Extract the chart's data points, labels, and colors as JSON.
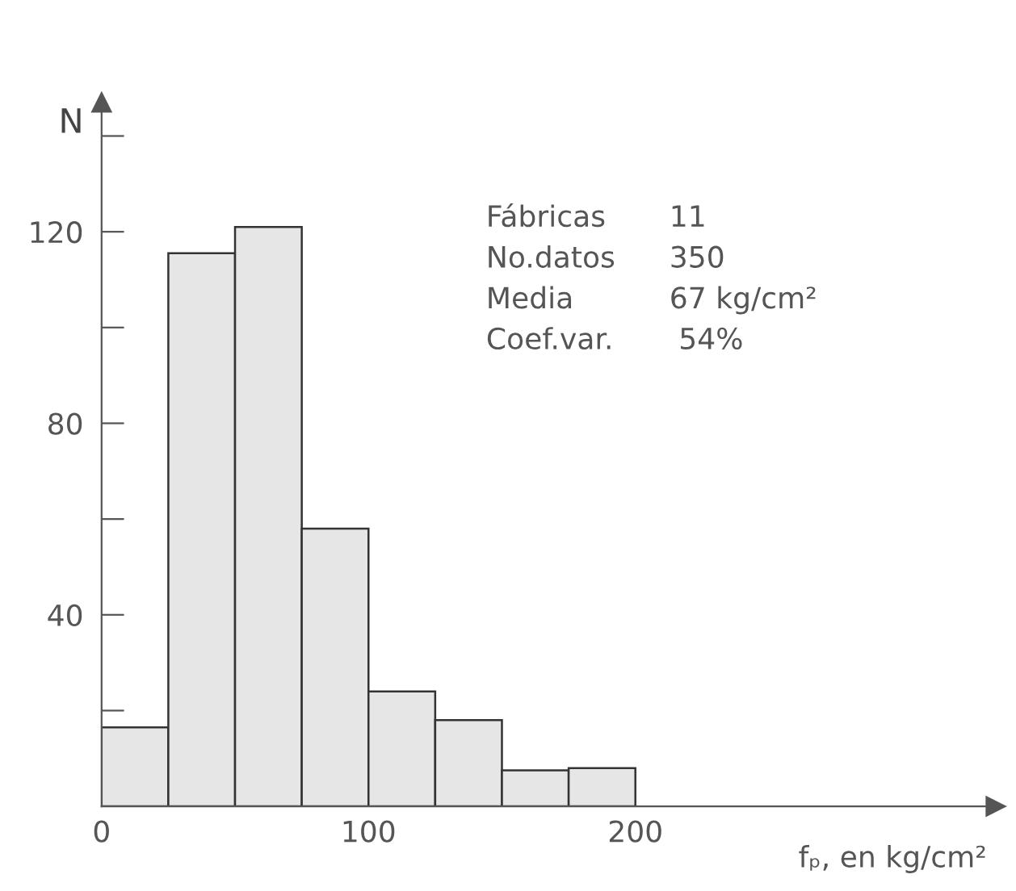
{
  "chart_data": {
    "type": "histogram",
    "ylabel": "N",
    "xlabel": "fₚ, en kg/cm²",
    "bins": [
      0,
      25,
      50,
      75,
      100,
      125,
      150,
      175,
      200
    ],
    "values": [
      16.5,
      115.5,
      121,
      58,
      24,
      18,
      7.5,
      8
    ],
    "color": "#e6e6e6",
    "xlim": [
      0,
      335
    ],
    "ylim": [
      0,
      147
    ],
    "xticks": [
      0,
      100,
      200
    ],
    "yticks": [
      {
        "value": 20,
        "label": null
      },
      40,
      {
        "value": 60,
        "label": null
      },
      80,
      {
        "value": 100,
        "label": null
      },
      120,
      {
        "value": 140,
        "label": null
      }
    ],
    "grid": false,
    "annotations": [
      "Fábricas\t11",
      "No.datos\t350",
      "Media\t67 kg/cm²",
      "Coef.var.\t 54%"
    ]
  }
}
